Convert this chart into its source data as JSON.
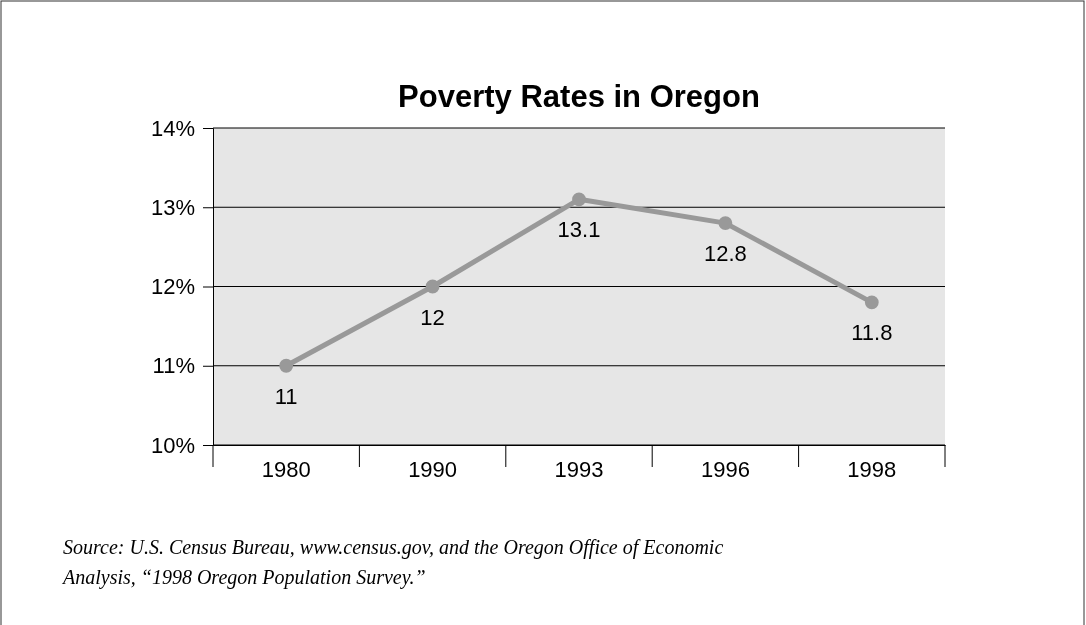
{
  "chart_data": {
    "type": "line",
    "title": "Poverty Rates in Oregon",
    "categories": [
      "1980",
      "1990",
      "1993",
      "1996",
      "1998"
    ],
    "values": [
      11,
      12,
      13.1,
      12.8,
      11.8
    ],
    "color": "#999999",
    "marker": "circle",
    "data_labels": true,
    "grid": "y",
    "ylim": [
      10,
      14
    ],
    "yticks": [
      {
        "value": 10,
        "label": "10%"
      },
      {
        "value": 11,
        "label": "11%"
      },
      {
        "value": 12,
        "label": "12%"
      },
      {
        "value": 13,
        "label": "13%"
      },
      {
        "value": 14,
        "label": "14%"
      }
    ],
    "annotations": [
      "Source: U.S. Census Bureau, www.census.gov, and the Oregon Office of Economic Analysis, “1998 Oregon Population Survey.”"
    ]
  }
}
